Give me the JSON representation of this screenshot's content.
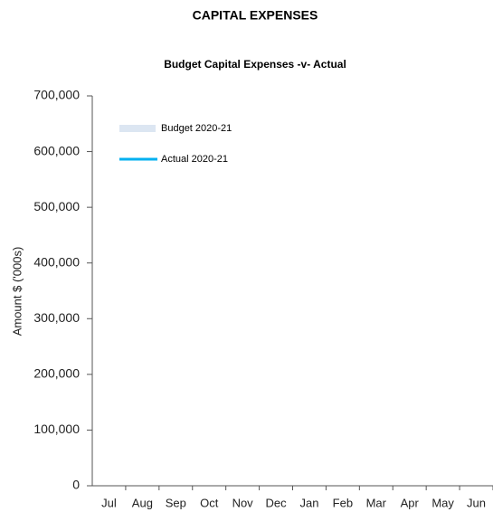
{
  "chart_data": {
    "type": "line",
    "title": "CAPITAL EXPENSES",
    "subtitle": "Budget Capital Expenses -v- Actual",
    "y_label": "Amount $ ('000s)",
    "categories": [
      "Jul",
      "Aug",
      "Sep",
      "Oct",
      "Nov",
      "Dec",
      "Jan",
      "Feb",
      "Mar",
      "Apr",
      "May",
      "Jun"
    ],
    "series": [
      {
        "name": "Budget 2020-21",
        "type": "area",
        "color": "#dce6f2",
        "values": [
          null,
          null,
          null,
          null,
          null,
          null,
          null,
          null,
          null,
          null,
          null,
          null
        ]
      },
      {
        "name": "Actual 2020-21",
        "type": "line",
        "color": "#00b0f0",
        "values": [
          null,
          null,
          null,
          null,
          null,
          null,
          null,
          null,
          null,
          null,
          null,
          null
        ]
      }
    ],
    "ylim": [
      0,
      700000
    ],
    "yticks": [
      0,
      {
        "value": 100000,
        "label": "100,000"
      },
      {
        "value": 200000,
        "label": "200,000"
      },
      {
        "value": 300000,
        "label": "300,000"
      },
      {
        "value": 400000,
        "label": "400,000"
      },
      {
        "value": 500000,
        "label": "500,000"
      },
      {
        "value": 600000,
        "label": "600,000"
      },
      {
        "value": 700000,
        "label": "700,000"
      }
    ],
    "legend": "upper-left",
    "grid": false
  }
}
